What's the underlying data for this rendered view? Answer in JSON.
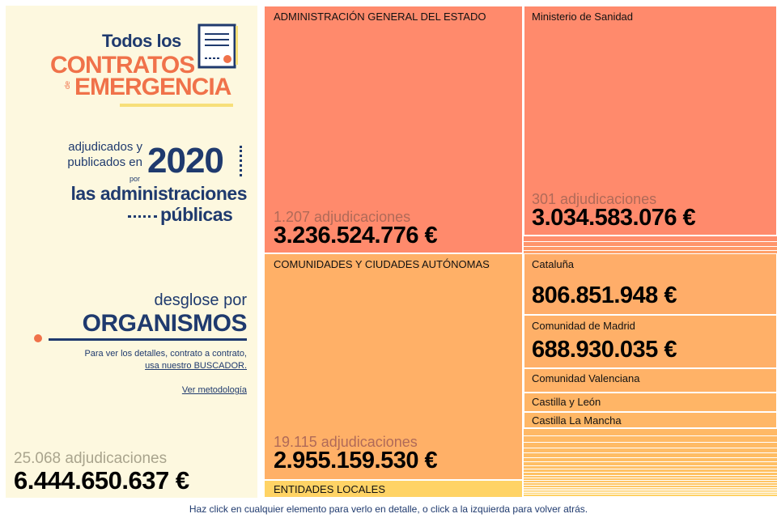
{
  "header": {
    "title_line1": "Todos los",
    "title_line2": "CONTRATOS",
    "title_de": "de",
    "title_line3": "EMERGENCIA",
    "adjudicados": "adjudicados y publicados en",
    "year": "2020",
    "por": "por",
    "administraciones1": "las administraciones",
    "administraciones2": "públicas"
  },
  "breakdown": {
    "desglose": "desglose por",
    "organismos": "ORGANISMOS",
    "help_text": "Para ver los detalles, contrato a contrato,",
    "help_link": "usa nuestro BUSCADOR.",
    "methodology_link": "Ver metodología"
  },
  "totals": {
    "count": "25.068 adjudicaciones",
    "amount": "6.444.650.637 €"
  },
  "treemap": {
    "age": {
      "label": "ADMINISTRACIÓN GENERAL DEL ESTADO",
      "count": "1.207 adjudicaciones",
      "amount": "3.236.524.776 €"
    },
    "sanidad": {
      "label": "Ministerio de Sanidad",
      "count": "301 adjudicaciones",
      "amount": "3.034.583.076 €"
    },
    "ccaa": {
      "label": "COMUNIDADES Y CIUDADES AUTÓNOMAS",
      "count": "19.115 adjudicaciones",
      "amount": "2.955.159.530 €"
    },
    "cataluna": {
      "label": "Cataluña",
      "amount": "806.851.948 €"
    },
    "madrid": {
      "label": "Comunidad de Madrid",
      "amount": "688.930.035 €"
    },
    "valenciana": {
      "label": "Comunidad Valenciana"
    },
    "cyl": {
      "label": "Castilla y León"
    },
    "clm": {
      "label": "Castilla La Mancha"
    },
    "locales": {
      "label": "ENTIDADES LOCALES"
    }
  },
  "colors": {
    "background_left": "#fdf8df",
    "navy": "#1f3a6e",
    "orange": "#f0724a",
    "age": "#ff8a6c",
    "ccaa": "#ffb067",
    "locales": "#ffd365"
  },
  "footer": {
    "hint": "Haz click en cualquier elemento para verlo en detalle, o click a la izquierda para volver atrás."
  }
}
